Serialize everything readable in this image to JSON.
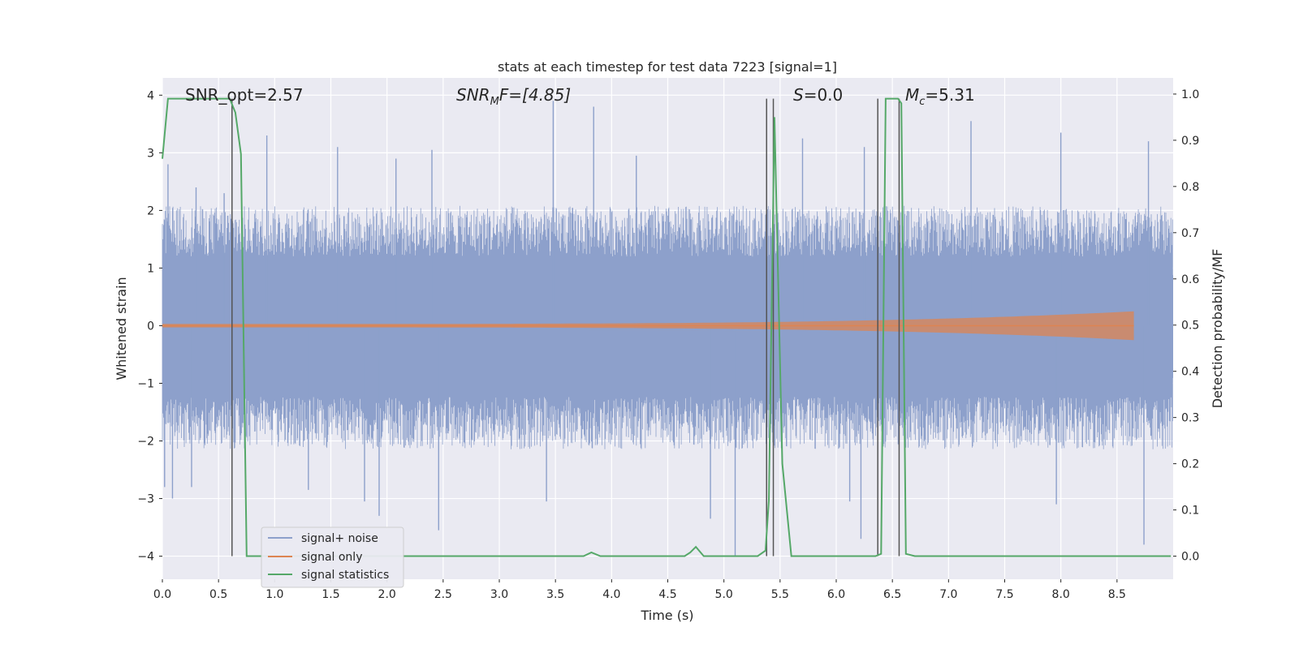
{
  "chart_data": {
    "type": "line",
    "title": "stats at each timestep for test data 7223 [signal=1]",
    "xlabel": "Time (s)",
    "ylabel_left": "Whitened strain",
    "ylabel_right": "Detection probability/MF",
    "xlim": [
      0,
      9.0
    ],
    "ylim_left": [
      -4.4,
      4.3
    ],
    "ylim_right": [
      -0.05,
      1.035
    ],
    "x_ticks": [
      "0.0",
      "0.5",
      "1.0",
      "1.5",
      "2.0",
      "2.5",
      "3.0",
      "3.5",
      "4.0",
      "4.5",
      "5.0",
      "5.5",
      "6.0",
      "6.5",
      "7.0",
      "7.5",
      "8.0",
      "8.5"
    ],
    "y_left_ticks": [
      "4",
      "3",
      "2",
      "1",
      "0",
      "−1",
      "−2",
      "−3",
      "−4"
    ],
    "y_right_ticks": [
      "1.0",
      "0.9",
      "0.8",
      "0.7",
      "0.6",
      "0.5",
      "0.4",
      "0.3",
      "0.2",
      "0.1",
      "0.0"
    ],
    "grid": true,
    "legend_position": "lower-left",
    "annotations": {
      "snr_opt": "SNR_opt=2.57",
      "snr_mf_base": "SNR",
      "snr_mf_sub": "M",
      "snr_mf_rest": "F=[4.85]",
      "s_italic": "S",
      "s_rest": "=0.0",
      "mc_base": "M",
      "mc_sub": "c",
      "mc_rest": "=5.31"
    },
    "vertical_lines_x": [
      0.62,
      5.38,
      5.44,
      6.37,
      6.56
    ],
    "series": [
      {
        "name": "signal+ noise",
        "color": "#8da0cb",
        "axis": "left",
        "envelope": {
          "typical_upper": 1.6,
          "typical_lower": -1.65,
          "peak_max": 4.0,
          "peak_min": -4.0
        },
        "peaks": [
          {
            "x": 0.05,
            "y": 2.8
          },
          {
            "x": 0.3,
            "y": 2.4
          },
          {
            "x": 0.55,
            "y": 2.3
          },
          {
            "x": 0.93,
            "y": 3.3
          },
          {
            "x": 1.56,
            "y": 3.1
          },
          {
            "x": 2.08,
            "y": 2.9
          },
          {
            "x": 2.4,
            "y": 3.05
          },
          {
            "x": 3.48,
            "y": 3.9
          },
          {
            "x": 3.84,
            "y": 3.8
          },
          {
            "x": 4.22,
            "y": 2.95
          },
          {
            "x": 5.38,
            "y": 2.2
          },
          {
            "x": 5.7,
            "y": 3.25
          },
          {
            "x": 6.25,
            "y": 3.1
          },
          {
            "x": 7.2,
            "y": 3.55
          },
          {
            "x": 8.0,
            "y": 3.35
          },
          {
            "x": 8.78,
            "y": 3.2
          }
        ],
        "troughs": [
          {
            "x": 0.02,
            "y": -2.8
          },
          {
            "x": 0.09,
            "y": -3.0
          },
          {
            "x": 0.26,
            "y": -2.8
          },
          {
            "x": 1.3,
            "y": -2.85
          },
          {
            "x": 1.8,
            "y": -3.05
          },
          {
            "x": 1.93,
            "y": -3.3
          },
          {
            "x": 2.46,
            "y": -3.55
          },
          {
            "x": 3.42,
            "y": -3.05
          },
          {
            "x": 4.88,
            "y": -3.35
          },
          {
            "x": 5.1,
            "y": -4.0
          },
          {
            "x": 6.12,
            "y": -3.05
          },
          {
            "x": 6.22,
            "y": -3.7
          },
          {
            "x": 7.96,
            "y": -3.1
          },
          {
            "x": 8.74,
            "y": -3.8
          }
        ]
      },
      {
        "name": "signal only",
        "color": "#dd8452",
        "axis": "left",
        "start_x": 0.0,
        "end_x": 8.65,
        "amplitude_start": 0.03,
        "amplitude_end": 0.25
      },
      {
        "name": "signal statistics",
        "color": "#55a868",
        "axis": "right",
        "x": [
          0.0,
          0.05,
          0.1,
          0.15,
          0.6,
          0.65,
          0.7,
          0.75,
          3.75,
          3.82,
          3.9,
          4.65,
          4.7,
          4.75,
          4.82,
          5.3,
          5.37,
          5.4,
          5.45,
          5.52,
          5.6,
          6.35,
          6.4,
          6.44,
          6.5,
          6.55,
          6.58,
          6.62,
          6.7,
          8.98
        ],
        "y": [
          0.86,
          0.99,
          0.99,
          0.99,
          0.99,
          0.96,
          0.87,
          0.0,
          0.0,
          0.008,
          0.0,
          0.0,
          0.008,
          0.02,
          0.0,
          0.0,
          0.012,
          0.12,
          0.95,
          0.2,
          0.0,
          0.0,
          0.005,
          0.99,
          0.99,
          0.99,
          0.98,
          0.005,
          0.0,
          0.0
        ]
      }
    ]
  }
}
